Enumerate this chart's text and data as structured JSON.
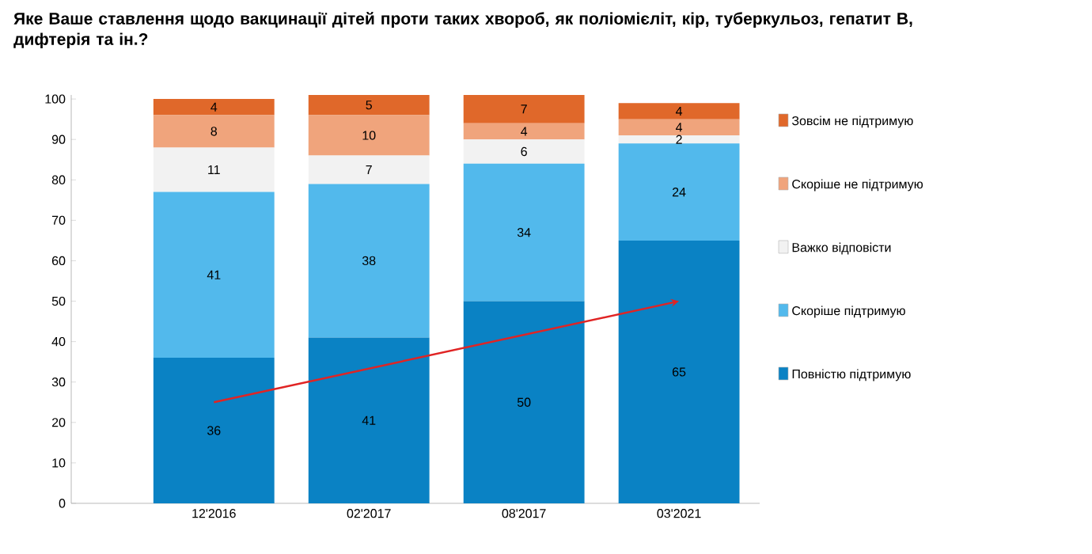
{
  "chart_data": {
    "type": "bar",
    "stacked": true,
    "title": "Яке Ваше ставлення щодо вакцинації дітей проти таких хвороб, як поліомієліт, кір, туберкульоз, гепатит В, дифтерія та ін.?",
    "categories": [
      "12'2016",
      "02'2017",
      "08'2017",
      "03'2021"
    ],
    "series": [
      {
        "name": "Повністю підтримую",
        "color": "#0a82c4",
        "values": [
          36,
          41,
          50,
          65
        ]
      },
      {
        "name": "Скоріше підтримую",
        "color": "#52b9ec",
        "values": [
          41,
          38,
          34,
          24
        ]
      },
      {
        "name": "Важко відповісти",
        "color": "#f2f2f2",
        "values": [
          11,
          7,
          6,
          2
        ]
      },
      {
        "name": "Скоріше не підтримую",
        "color": "#f0a47c",
        "values": [
          8,
          10,
          4,
          4
        ]
      },
      {
        "name": "Зовсім не підтримую",
        "color": "#e0682a",
        "values": [
          4,
          5,
          7,
          4
        ]
      },
      {
        "type": "line",
        "color": "#e02424",
        "x": [
          "12'2016",
          "03'2021"
        ],
        "values": [
          25,
          50
        ],
        "value_labels": [
          null,
          null
        ]
      }
    ],
    "ylim": [
      0,
      101
    ],
    "yticks": [
      0,
      10,
      20,
      30,
      40,
      50,
      60,
      70,
      80,
      90,
      100
    ],
    "data_labels": true,
    "legend": "right",
    "grid": false
  }
}
